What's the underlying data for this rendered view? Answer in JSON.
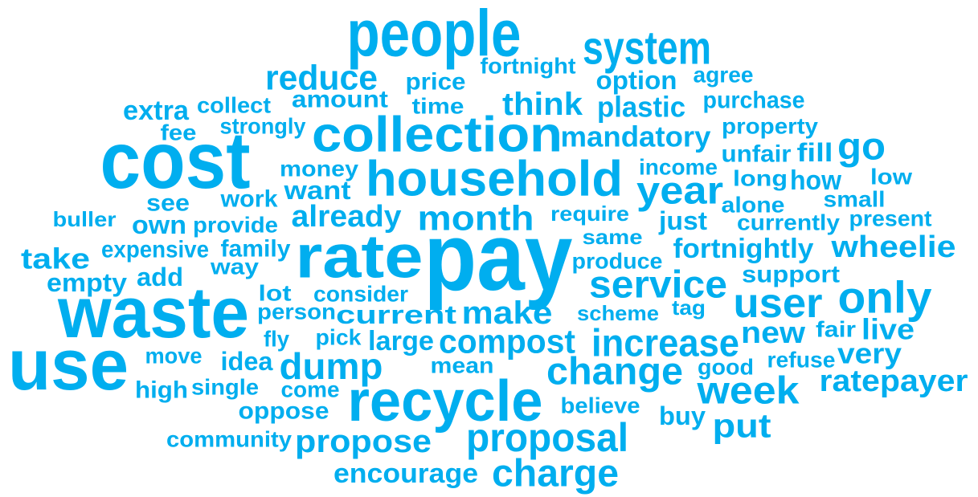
{
  "words": [
    "people",
    "system",
    "fortnight",
    "reduce",
    "price",
    "option",
    "agree",
    "extra",
    "collect",
    "amount",
    "time",
    "think",
    "plastic",
    "purchase",
    "fee",
    "strongly",
    "collection",
    "mandatory",
    "property",
    "cost",
    "unfair",
    "fill",
    "go",
    "money",
    "income",
    "household",
    "long",
    "how",
    "low",
    "want",
    "year",
    "see",
    "work",
    "alone",
    "small",
    "buller",
    "own",
    "provide",
    "already",
    "month",
    "require",
    "just",
    "currently",
    "present",
    "same",
    "take",
    "expensive",
    "family",
    "rate",
    "pay",
    "fortnightly",
    "wheelie",
    "produce",
    "way",
    "empty",
    "add",
    "support",
    "service",
    "lot",
    "consider",
    "waste",
    "user",
    "only",
    "person",
    "current",
    "make",
    "scheme",
    "tag",
    "fly",
    "pick",
    "large",
    "compost",
    "increase",
    "new",
    "fair",
    "live",
    "move",
    "idea",
    "dump",
    "mean",
    "use",
    "change",
    "good",
    "refuse",
    "very",
    "high",
    "single",
    "come",
    "recycle",
    "week",
    "ratepayer",
    "believe",
    "oppose",
    "buy",
    "put",
    "community",
    "propose",
    "proposal",
    "encourage",
    "charge"
  ]
}
